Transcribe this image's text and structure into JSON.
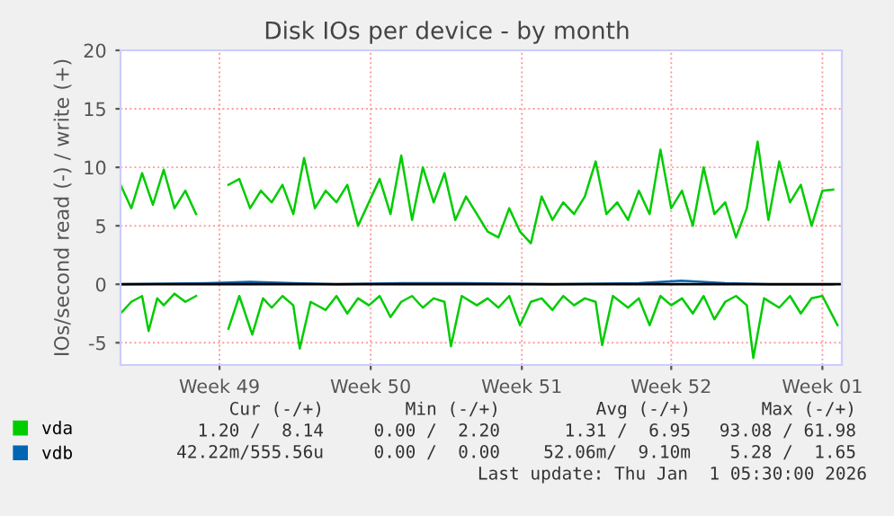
{
  "chart_data": {
    "type": "line",
    "title": "Disk IOs per device - by month",
    "ylabel": "IOs/second read (-) / write (+)",
    "xlim": [
      "2025-11-30T00:00",
      "2026-01-02T09:36"
    ],
    "xticks": [
      {
        "value": "2025-12-04T14:00",
        "label": "Week 49"
      },
      {
        "value": "2025-12-11T14:00",
        "label": "Week 50"
      },
      {
        "value": "2025-12-18T14:00",
        "label": "Week 51"
      },
      {
        "value": "2025-12-25T12:00",
        "label": "Week 52"
      },
      {
        "value": "2026-01-01T12:00",
        "label": "Week 01"
      }
    ],
    "ylim": [
      -6.9,
      20
    ],
    "yticks": [
      -5,
      0,
      5,
      10,
      15,
      20
    ],
    "grid": true,
    "legend": "bottom left",
    "ref_lines": [
      {
        "axis": "y",
        "value": 0,
        "color": "#000000"
      }
    ],
    "series": [
      {
        "name": "vda",
        "color": "#00cc00",
        "x": [
          "2025-11-30T00:00",
          "2025-11-30T12:00",
          "2025-12-01T00:00",
          "2025-12-01T12:00",
          "2025-12-02T00:00",
          "2025-12-02T12:00",
          "2025-12-03T00:00",
          "2025-12-03T12:00",
          "2025-12-04T00:00",
          "2025-12-04T12:00",
          "2025-12-05T00:00",
          "2025-12-05T12:00",
          "2025-12-06T00:00",
          "2025-12-06T12:00",
          "2025-12-07T00:00",
          "2025-12-07T12:00",
          "2025-12-08T00:00",
          "2025-12-08T12:00",
          "2025-12-09T00:00",
          "2025-12-09T12:00",
          "2025-12-10T00:00",
          "2025-12-10T12:00",
          "2025-12-11T00:00",
          "2025-12-11T12:00",
          "2025-12-12T00:00",
          "2025-12-12T12:00",
          "2025-12-13T00:00",
          "2025-12-13T12:00",
          "2025-12-14T00:00",
          "2025-12-14T12:00",
          "2025-12-15T00:00",
          "2025-12-15T12:00",
          "2025-12-16T00:00",
          "2025-12-16T12:00",
          "2025-12-17T00:00",
          "2025-12-17T12:00",
          "2025-12-18T00:00",
          "2025-12-18T12:00",
          "2025-12-19T00:00",
          "2025-12-19T12:00",
          "2025-12-20T00:00",
          "2025-12-20T12:00",
          "2025-12-21T00:00",
          "2025-12-21T12:00",
          "2025-12-22T00:00",
          "2025-12-22T12:00",
          "2025-12-23T00:00",
          "2025-12-23T12:00",
          "2025-12-24T00:00",
          "2025-12-24T12:00",
          "2025-12-25T00:00",
          "2025-12-25T12:00",
          "2025-12-26T00:00",
          "2025-12-26T12:00",
          "2025-12-27T00:00",
          "2025-12-27T12:00",
          "2025-12-28T00:00",
          "2025-12-28T12:00",
          "2025-12-29T00:00",
          "2025-12-29T12:00",
          "2025-12-30T00:00",
          "2025-12-30T12:00",
          "2025-12-31T00:00",
          "2025-12-31T12:00",
          "2026-01-01T00:00",
          "2026-01-01T12:00",
          "2026-01-02T00:00"
        ],
        "values": [
          8.5,
          6.5,
          9.5,
          6.8,
          9.8,
          6.5,
          8.0,
          6.0,
          null,
          null,
          8.5,
          9.0,
          6.5,
          8.0,
          7.0,
          8.5,
          6.0,
          10.8,
          6.5,
          8.0,
          7.0,
          8.5,
          5.0,
          7.0,
          9.0,
          6.0,
          11.0,
          5.5,
          10.0,
          7.0,
          9.5,
          5.5,
          7.5,
          6.0,
          4.5,
          4.0,
          6.5,
          4.5,
          3.5,
          7.5,
          5.5,
          7.0,
          6.0,
          7.5,
          10.5,
          6.0,
          7.0,
          5.5,
          8.0,
          6.0,
          11.5,
          6.5,
          8.0,
          5.0,
          10.0,
          6.0,
          7.0,
          4.0,
          6.5,
          12.2,
          5.5,
          10.5,
          7.0,
          8.5,
          5.0,
          8.0,
          8.1
        ]
      },
      {
        "color": "#00cc00",
        "x": [
          "2025-11-30T00:00",
          "2025-11-30T12:00",
          "2025-12-01T00:00",
          "2025-12-01T07:12",
          "2025-12-01T16:48",
          "2025-12-02T00:00",
          "2025-12-02T12:00",
          "2025-12-03T00:00",
          "2025-12-03T12:00",
          "2025-12-04T00:00",
          "2025-12-04T12:00",
          "2025-12-05T00:00",
          "2025-12-05T12:00",
          "2025-12-06T02:24",
          "2025-12-06T14:24",
          "2025-12-07T00:00",
          "2025-12-07T12:00",
          "2025-12-08T00:00",
          "2025-12-08T07:12",
          "2025-12-08T19:12",
          "2025-12-09T12:00",
          "2025-12-10T00:00",
          "2025-12-10T12:00",
          "2025-12-11T00:00",
          "2025-12-11T12:00",
          "2025-12-12T00:00",
          "2025-12-12T12:00",
          "2025-12-13T00:00",
          "2025-12-13T12:00",
          "2025-12-14T00:00",
          "2025-12-14T12:00",
          "2025-12-15T00:00",
          "2025-12-15T07:12",
          "2025-12-15T19:12",
          "2025-12-16T12:00",
          "2025-12-17T00:00",
          "2025-12-17T12:00",
          "2025-12-18T00:00",
          "2025-12-18T12:00",
          "2025-12-19T00:00",
          "2025-12-19T12:00",
          "2025-12-20T00:00",
          "2025-12-20T12:00",
          "2025-12-21T00:00",
          "2025-12-21T12:00",
          "2025-12-22T00:00",
          "2025-12-22T07:12",
          "2025-12-22T19:12",
          "2025-12-23T12:00",
          "2025-12-24T00:00",
          "2025-12-24T12:00",
          "2025-12-25T00:00",
          "2025-12-25T12:00",
          "2025-12-26T00:00",
          "2025-12-26T12:00",
          "2025-12-27T00:00",
          "2025-12-27T12:00",
          "2025-12-28T00:00",
          "2025-12-28T12:00",
          "2025-12-29T00:00",
          "2025-12-29T07:12",
          "2025-12-29T19:12",
          "2025-12-30T12:00",
          "2025-12-31T00:00",
          "2025-12-31T12:00",
          "2026-01-01T00:00",
          "2026-01-01T12:00",
          "2026-01-02T04:48"
        ],
        "values": [
          -2.5,
          -1.5,
          -1.0,
          -4.0,
          -1.2,
          -1.8,
          -0.8,
          -1.5,
          -1.0,
          null,
          null,
          -3.8,
          -1.0,
          -4.3,
          -1.2,
          -2.0,
          -1.0,
          -1.8,
          -5.5,
          -1.5,
          -2.2,
          -1.0,
          -2.5,
          -1.2,
          -1.8,
          -1.0,
          -2.8,
          -1.5,
          -1.0,
          -2.0,
          -1.2,
          -1.5,
          -5.3,
          -1.0,
          -1.8,
          -1.2,
          -2.0,
          -1.0,
          -3.5,
          -1.5,
          -1.2,
          -2.2,
          -1.0,
          -1.8,
          -1.2,
          -1.5,
          -5.2,
          -1.0,
          -2.0,
          -1.2,
          -3.5,
          -1.0,
          -1.8,
          -1.2,
          -2.5,
          -1.0,
          -3.0,
          -1.5,
          -1.0,
          -1.8,
          -6.3,
          -1.2,
          -2.0,
          -1.0,
          -2.5,
          -1.2,
          -1.0,
          -3.5
        ]
      },
      {
        "name": "vdb",
        "color": "#0066b3",
        "x": [
          "2025-11-30T00:00",
          "2025-12-04T00:00",
          "2025-12-06T00:00",
          "2025-12-08T00:00",
          "2025-12-10T00:00",
          "2025-12-13T00:00",
          "2025-12-16T00:00",
          "2025-12-20T00:00",
          "2025-12-24T00:00",
          "2025-12-26T00:00",
          "2025-12-28T00:00",
          "2025-12-30T00:00",
          "2026-01-02T00:00"
        ],
        "values": [
          0.0,
          0.1,
          0.2,
          0.1,
          0.0,
          0.1,
          0.1,
          0.0,
          0.1,
          0.3,
          0.1,
          0.0,
          0.0
        ]
      }
    ],
    "annotations": [
      "Cur (-/+)",
      "Min (-/+)",
      "Avg (-/+)",
      "Max (-/+)",
      "1.20 /  8.14",
      "0.00 /  2.20",
      "1.31 /  6.95",
      "93.08 / 61.98",
      "42.22m/555.56u",
      "0.00 /  0.00",
      "52.06m/  9.10m",
      "5.28 /  1.65",
      "Last update: Thu Jan  1 05:30:00 2026"
    ]
  }
}
